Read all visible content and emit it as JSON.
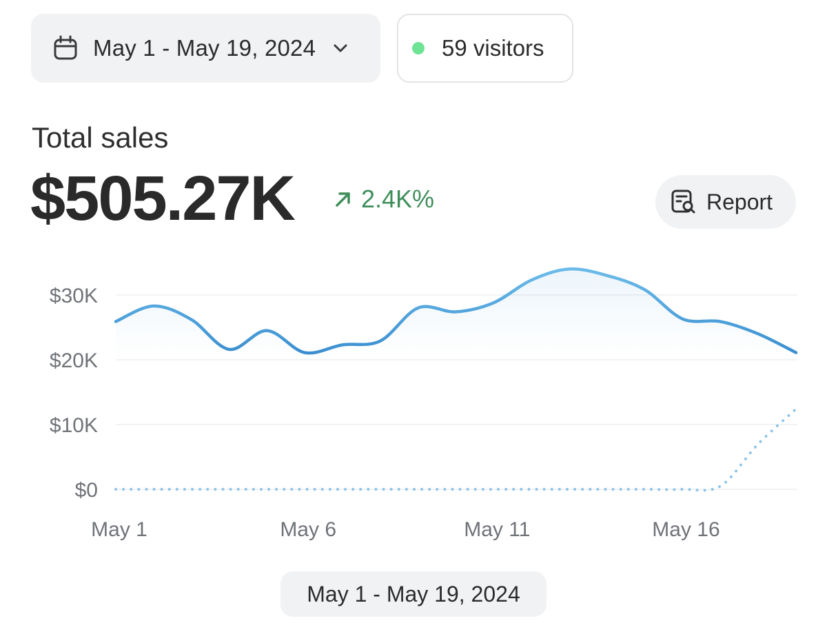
{
  "header": {
    "date_range_label": "May 1 - May 19, 2024",
    "visitors_label": "59 visitors",
    "live_dot_color": "#6fe394"
  },
  "summary": {
    "title": "Total sales",
    "value": "$505.27K",
    "change": "2.4K%",
    "change_color": "#3f8e5a",
    "change_direction": "up",
    "report_button_label": "Report"
  },
  "chart_data": {
    "type": "line",
    "x": [
      "May 1",
      "May 2",
      "May 3",
      "May 4",
      "May 5",
      "May 6",
      "May 7",
      "May 8",
      "May 9",
      "May 10",
      "May 11",
      "May 12",
      "May 13",
      "May 14",
      "May 15",
      "May 16",
      "May 17",
      "May 18",
      "May 19"
    ],
    "x_tick_labels": [
      "May 1",
      "May 6",
      "May 11",
      "May 16"
    ],
    "y_tick_labels": [
      "$0",
      "$10K",
      "$20K",
      "$30K"
    ],
    "y_ticks": [
      0,
      10000,
      20000,
      30000
    ],
    "ylim": [
      0,
      35000
    ],
    "grid": true,
    "series": [
      {
        "style": "solid",
        "color": "#4a9ed9",
        "values": [
          25900,
          28300,
          26200,
          21600,
          24500,
          21100,
          22300,
          22900,
          28000,
          27400,
          28800,
          32300,
          34000,
          33000,
          30800,
          26300,
          25900,
          24000,
          21100
        ]
      },
      {
        "style": "dotted",
        "color": "#8fc4e8",
        "values": [
          0,
          0,
          0,
          0,
          0,
          0,
          0,
          0,
          0,
          0,
          0,
          0,
          0,
          0,
          0,
          0,
          500,
          7000,
          12400
        ]
      }
    ]
  },
  "footer": {
    "range_label": "May 1 - May 19, 2024"
  }
}
